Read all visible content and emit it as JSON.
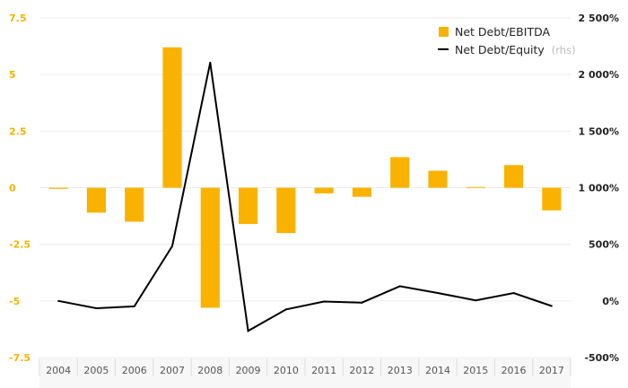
{
  "chart_data": {
    "type": "bar+line",
    "categories": [
      "2004",
      "2005",
      "2006",
      "2007",
      "2008",
      "2009",
      "2010",
      "2011",
      "2012",
      "2013",
      "2014",
      "2015",
      "2016",
      "2017"
    ],
    "series": [
      {
        "name": "Net Debt/EBITDA",
        "type": "bar",
        "axis": "left",
        "color": "#f9b200",
        "values": [
          -0.05,
          -1.1,
          -1.5,
          6.2,
          -5.3,
          -1.6,
          -2.0,
          -0.25,
          -0.4,
          1.35,
          0.75,
          0.03,
          1.0,
          -1.0
        ]
      },
      {
        "name": "Net Debt/Equity",
        "name_suffix": "(rhs)",
        "type": "line",
        "axis": "right",
        "color": "#000000",
        "values": [
          0,
          -65,
          -48,
          485,
          2105,
          -265,
          -75,
          -5,
          -15,
          130,
          70,
          5,
          70,
          -45
        ]
      }
    ],
    "y_left": {
      "ylim": [
        -7.5,
        7.5
      ],
      "ticks": [
        7.5,
        5,
        2.5,
        0,
        -2.5,
        -5,
        -7.5
      ],
      "tick_labels": [
        "7.5",
        "5",
        "2.5",
        "0",
        "-2.5",
        "-5",
        "-7.5"
      ],
      "color": "#f5b400"
    },
    "y_right": {
      "ylim": [
        -500,
        2500
      ],
      "ticks": [
        2500,
        2000,
        1500,
        1000,
        500,
        0,
        -500
      ],
      "tick_labels": [
        "2 500%",
        "2 000%",
        "1 500%",
        "1 000%",
        "500%",
        "0%",
        "-500%"
      ]
    },
    "grid": true,
    "legend_position": "top-right"
  }
}
